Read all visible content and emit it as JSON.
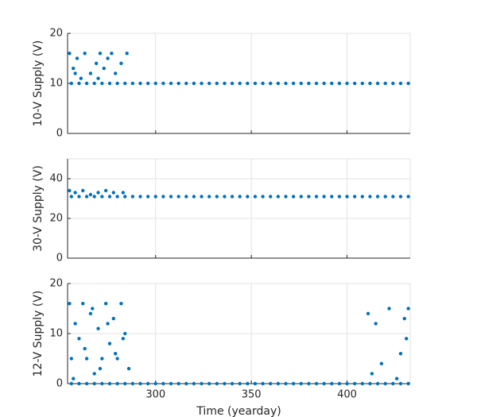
{
  "chart_data": [
    {
      "type": "scatter",
      "ylabel": "10-V Supply (V)",
      "xlim": [
        254,
        433
      ],
      "ylim": [
        0,
        20
      ],
      "xticks": [
        300,
        350,
        400
      ],
      "yticks": [
        0,
        10,
        20
      ],
      "grid": true,
      "xtick_labels": false,
      "color": "#0072bd",
      "x": [
        256,
        260,
        264,
        268,
        272,
        276,
        280,
        284,
        288,
        292,
        296,
        300,
        304,
        308,
        312,
        316,
        320,
        324,
        328,
        332,
        336,
        340,
        344,
        348,
        352,
        356,
        360,
        364,
        368,
        372,
        376,
        380,
        384,
        388,
        392,
        396,
        400,
        404,
        408,
        412,
        416,
        420,
        424,
        428,
        432,
        255,
        257,
        259,
        261,
        263,
        266,
        269,
        271,
        273,
        275,
        277,
        279,
        282,
        285,
        258,
        270
      ],
      "values": [
        10,
        10,
        10,
        10,
        10,
        10,
        10,
        10,
        10,
        10,
        10,
        10,
        10,
        10,
        10,
        10,
        10,
        10,
        10,
        10,
        10,
        10,
        10,
        10,
        10,
        10,
        10,
        10,
        10,
        10,
        10,
        10,
        10,
        10,
        10,
        10,
        10,
        10,
        10,
        10,
        10,
        10,
        10,
        10,
        10,
        16,
        13,
        15,
        11,
        16,
        12,
        14,
        16,
        13,
        15,
        16,
        12,
        14,
        16,
        12,
        11
      ]
    },
    {
      "type": "scatter",
      "ylabel": "30-V Supply (V)",
      "xlim": [
        254,
        433
      ],
      "ylim": [
        0,
        50
      ],
      "xticks": [
        300,
        350,
        400
      ],
      "yticks": [
        0,
        20,
        40
      ],
      "grid": true,
      "xtick_labels": false,
      "color": "#0072bd",
      "x": [
        256,
        260,
        264,
        268,
        272,
        276,
        280,
        284,
        288,
        292,
        296,
        300,
        304,
        308,
        312,
        316,
        320,
        324,
        328,
        332,
        336,
        340,
        344,
        348,
        352,
        356,
        360,
        364,
        368,
        372,
        376,
        380,
        384,
        388,
        392,
        396,
        400,
        404,
        408,
        412,
        416,
        420,
        424,
        428,
        432,
        255,
        258,
        262,
        266,
        270,
        274,
        278,
        283
      ],
      "values": [
        31,
        31,
        31,
        31,
        31,
        31,
        31,
        31,
        31,
        31,
        31,
        31,
        31,
        31,
        31,
        31,
        31,
        31,
        31,
        31,
        31,
        31,
        31,
        31,
        31,
        31,
        31,
        31,
        31,
        31,
        31,
        31,
        31,
        31,
        31,
        31,
        31,
        31,
        31,
        31,
        31,
        31,
        31,
        31,
        31,
        34,
        33,
        34,
        32,
        33,
        34,
        33,
        33
      ]
    },
    {
      "type": "scatter",
      "ylabel": "12-V Supply (V)",
      "xlabel": "Time (yearday)",
      "xlim": [
        254,
        433
      ],
      "ylim": [
        0,
        20
      ],
      "xticks": [
        300,
        350,
        400
      ],
      "yticks": [
        0,
        10,
        20
      ],
      "grid": true,
      "xtick_labels": true,
      "color": "#0072bd",
      "x": [
        256,
        260,
        264,
        268,
        272,
        276,
        280,
        284,
        288,
        292,
        296,
        300,
        304,
        308,
        312,
        316,
        320,
        324,
        328,
        332,
        336,
        340,
        344,
        348,
        352,
        356,
        360,
        364,
        368,
        372,
        376,
        380,
        384,
        388,
        392,
        396,
        400,
        404,
        408,
        412,
        416,
        420,
        424,
        428,
        432,
        255,
        256,
        258,
        260,
        262,
        264,
        266,
        268,
        270,
        272,
        274,
        276,
        278,
        280,
        282,
        284,
        286,
        257,
        263,
        267,
        271,
        275,
        279,
        283,
        411,
        413,
        415,
        418,
        422,
        426,
        428,
        430,
        431,
        432
      ],
      "values": [
        0,
        0,
        0,
        0,
        0,
        0,
        0,
        0,
        0,
        0,
        0,
        0,
        0,
        0,
        0,
        0,
        0,
        0,
        0,
        0,
        0,
        0,
        0,
        0,
        0,
        0,
        0,
        0,
        0,
        0,
        0,
        0,
        0,
        0,
        0,
        0,
        0,
        0,
        0,
        0,
        0,
        0,
        0,
        0,
        0,
        16,
        5,
        12,
        9,
        16,
        5,
        14,
        2,
        11,
        5,
        16,
        8,
        13,
        5,
        16,
        10,
        3,
        1,
        7,
        15,
        3,
        12,
        6,
        9,
        14,
        2,
        12,
        4,
        15,
        1,
        6,
        13,
        9,
        15
      ]
    }
  ]
}
